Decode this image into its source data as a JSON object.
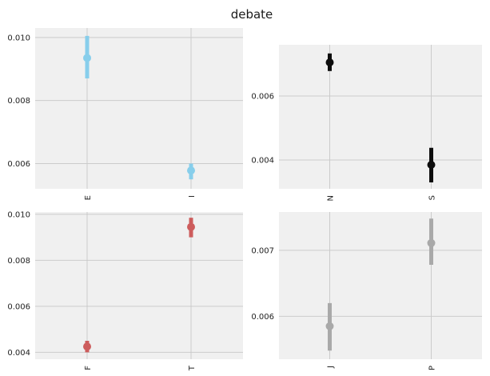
{
  "figure": {
    "title": "debate"
  },
  "chart_data": [
    {
      "type": "scatter",
      "categories": [
        "E",
        "I"
      ],
      "y": [
        0.00935,
        0.00578
      ],
      "err_low": [
        0.0087,
        0.0055
      ],
      "err_high": [
        0.01005,
        0.006
      ],
      "yticks": [
        "0.006",
        "0.008",
        "0.010"
      ],
      "ylim": [
        0.0052,
        0.0103
      ],
      "color": "#87ceeb",
      "grid": true
    },
    {
      "type": "scatter",
      "categories": [
        "N",
        "S"
      ],
      "y": [
        0.00705,
        0.00385
      ],
      "err_low": [
        0.00678,
        0.0033
      ],
      "err_high": [
        0.00733,
        0.00438
      ],
      "yticks": [
        "0.004",
        "0.006"
      ],
      "ylim": [
        0.0031,
        0.0076
      ],
      "color": "#0d0d0d",
      "grid": true
    },
    {
      "type": "scatter",
      "categories": [
        "F",
        "T"
      ],
      "y": [
        0.00425,
        0.00945
      ],
      "err_low": [
        0.004,
        0.009
      ],
      "err_high": [
        0.0045,
        0.00985
      ],
      "yticks": [
        "0.004",
        "0.006",
        "0.008",
        "0.010"
      ],
      "ylim": [
        0.0037,
        0.0101
      ],
      "color": "#cd5c5c",
      "grid": true
    },
    {
      "type": "scatter",
      "categories": [
        "J",
        "P"
      ],
      "y": [
        0.00585,
        0.00711
      ],
      "err_low": [
        0.00548,
        0.00678
      ],
      "err_high": [
        0.0062,
        0.00748
      ],
      "yticks": [
        "0.006",
        "0.007"
      ],
      "ylim": [
        0.00535,
        0.00758
      ],
      "color": "#a9a9a9",
      "grid": true
    }
  ]
}
